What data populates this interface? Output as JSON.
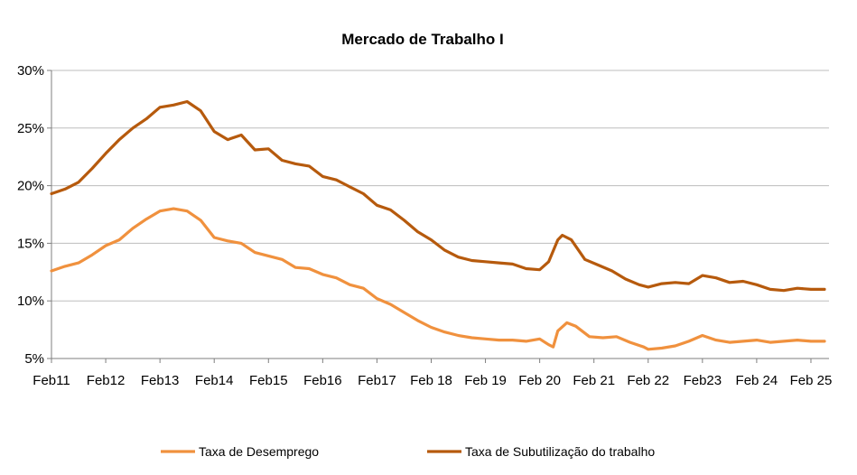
{
  "chart_data": {
    "type": "line",
    "title": "Mercado de Trabalho  I",
    "xlabel": "",
    "ylabel": "",
    "y_unit": "%",
    "ylim": [
      5,
      30
    ],
    "y_ticks": [
      5,
      10,
      15,
      20,
      25,
      30
    ],
    "y_tick_labels": [
      "5%",
      "10%",
      "15%",
      "20%",
      "25%",
      "30%"
    ],
    "xlim": [
      "2011-02",
      "2025-05"
    ],
    "x_ticks": [
      "2011-02",
      "2012-02",
      "2013-02",
      "2014-02",
      "2015-02",
      "2016-02",
      "2017-02",
      "2018-02",
      "2019-02",
      "2020-02",
      "2021-02",
      "2022-02",
      "2023-02",
      "2024-02",
      "2025-02"
    ],
    "x_tick_labels": [
      "Feb11",
      "Feb12",
      "Feb13",
      "Feb14",
      "Feb15",
      "Feb16",
      "Feb17",
      "Feb 18",
      "Feb 19",
      "Feb 20",
      "Feb 21",
      "Feb 22",
      "Feb23",
      "Feb 24",
      "Feb 25"
    ],
    "grid": {
      "horizontal": true,
      "vertical": false
    },
    "legend_position": "bottom",
    "series": [
      {
        "name": "Taxa de Desemprego",
        "color": "#f0913e",
        "points": [
          [
            "2011-02",
            12.6
          ],
          [
            "2011-05",
            13.0
          ],
          [
            "2011-08",
            13.3
          ],
          [
            "2011-11",
            14.0
          ],
          [
            "2012-02",
            14.8
          ],
          [
            "2012-05",
            15.3
          ],
          [
            "2012-08",
            16.3
          ],
          [
            "2012-11",
            17.1
          ],
          [
            "2013-02",
            17.8
          ],
          [
            "2013-05",
            18.0
          ],
          [
            "2013-08",
            17.8
          ],
          [
            "2013-11",
            17.0
          ],
          [
            "2014-02",
            15.5
          ],
          [
            "2014-05",
            15.2
          ],
          [
            "2014-08",
            15.0
          ],
          [
            "2014-11",
            14.2
          ],
          [
            "2015-02",
            13.9
          ],
          [
            "2015-05",
            13.6
          ],
          [
            "2015-08",
            12.9
          ],
          [
            "2015-11",
            12.8
          ],
          [
            "2016-02",
            12.3
          ],
          [
            "2016-05",
            12.0
          ],
          [
            "2016-08",
            11.4
          ],
          [
            "2016-11",
            11.1
          ],
          [
            "2017-02",
            10.2
          ],
          [
            "2017-05",
            9.7
          ],
          [
            "2017-08",
            9.0
          ],
          [
            "2017-11",
            8.3
          ],
          [
            "2018-02",
            7.7
          ],
          [
            "2018-05",
            7.3
          ],
          [
            "2018-08",
            7.0
          ],
          [
            "2018-11",
            6.8
          ],
          [
            "2019-02",
            6.7
          ],
          [
            "2019-05",
            6.6
          ],
          [
            "2019-08",
            6.6
          ],
          [
            "2019-11",
            6.5
          ],
          [
            "2020-02",
            6.7
          ],
          [
            "2020-04",
            6.2
          ],
          [
            "2020-05",
            6.0
          ],
          [
            "2020-06",
            7.4
          ],
          [
            "2020-08",
            8.1
          ],
          [
            "2020-10",
            7.8
          ],
          [
            "2021-01",
            6.9
          ],
          [
            "2021-04",
            6.8
          ],
          [
            "2021-07",
            6.9
          ],
          [
            "2021-10",
            6.4
          ],
          [
            "2022-01",
            6.0
          ],
          [
            "2022-02",
            5.8
          ],
          [
            "2022-05",
            5.9
          ],
          [
            "2022-08",
            6.1
          ],
          [
            "2022-11",
            6.5
          ],
          [
            "2023-02",
            7.0
          ],
          [
            "2023-05",
            6.6
          ],
          [
            "2023-08",
            6.4
          ],
          [
            "2023-11",
            6.5
          ],
          [
            "2024-02",
            6.6
          ],
          [
            "2024-05",
            6.4
          ],
          [
            "2024-08",
            6.5
          ],
          [
            "2024-11",
            6.6
          ],
          [
            "2025-02",
            6.5
          ],
          [
            "2025-05",
            6.5
          ]
        ]
      },
      {
        "name": "Taxa de Subutilização do trabalho",
        "color": "#b65a0d",
        "points": [
          [
            "2011-02",
            19.3
          ],
          [
            "2011-05",
            19.7
          ],
          [
            "2011-08",
            20.3
          ],
          [
            "2011-11",
            21.5
          ],
          [
            "2012-02",
            22.8
          ],
          [
            "2012-05",
            24.0
          ],
          [
            "2012-08",
            25.0
          ],
          [
            "2012-11",
            25.8
          ],
          [
            "2013-02",
            26.8
          ],
          [
            "2013-05",
            27.0
          ],
          [
            "2013-08",
            27.3
          ],
          [
            "2013-11",
            26.5
          ],
          [
            "2014-02",
            24.7
          ],
          [
            "2014-05",
            24.0
          ],
          [
            "2014-08",
            24.4
          ],
          [
            "2014-11",
            23.1
          ],
          [
            "2015-02",
            23.2
          ],
          [
            "2015-05",
            22.2
          ],
          [
            "2015-08",
            21.9
          ],
          [
            "2015-11",
            21.7
          ],
          [
            "2016-02",
            20.8
          ],
          [
            "2016-05",
            20.5
          ],
          [
            "2016-08",
            19.9
          ],
          [
            "2016-11",
            19.3
          ],
          [
            "2017-02",
            18.3
          ],
          [
            "2017-05",
            17.9
          ],
          [
            "2017-08",
            17.0
          ],
          [
            "2017-11",
            16.0
          ],
          [
            "2018-02",
            15.3
          ],
          [
            "2018-05",
            14.4
          ],
          [
            "2018-08",
            13.8
          ],
          [
            "2018-11",
            13.5
          ],
          [
            "2019-02",
            13.4
          ],
          [
            "2019-05",
            13.3
          ],
          [
            "2019-08",
            13.2
          ],
          [
            "2019-11",
            12.8
          ],
          [
            "2020-02",
            12.7
          ],
          [
            "2020-04",
            13.4
          ],
          [
            "2020-06",
            15.3
          ],
          [
            "2020-07",
            15.7
          ],
          [
            "2020-09",
            15.3
          ],
          [
            "2020-12",
            13.6
          ],
          [
            "2021-03",
            13.1
          ],
          [
            "2021-06",
            12.6
          ],
          [
            "2021-09",
            11.9
          ],
          [
            "2021-12",
            11.4
          ],
          [
            "2022-02",
            11.2
          ],
          [
            "2022-05",
            11.5
          ],
          [
            "2022-08",
            11.6
          ],
          [
            "2022-11",
            11.5
          ],
          [
            "2023-02",
            12.2
          ],
          [
            "2023-05",
            12.0
          ],
          [
            "2023-08",
            11.6
          ],
          [
            "2023-11",
            11.7
          ],
          [
            "2024-02",
            11.4
          ],
          [
            "2024-05",
            11.0
          ],
          [
            "2024-08",
            10.9
          ],
          [
            "2024-11",
            11.1
          ],
          [
            "2025-02",
            11.0
          ],
          [
            "2025-05",
            11.0
          ]
        ]
      }
    ]
  }
}
